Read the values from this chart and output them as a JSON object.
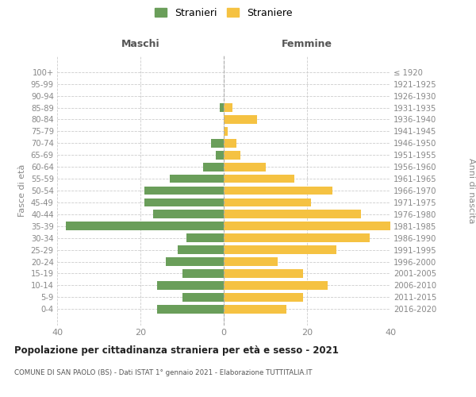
{
  "age_groups": [
    "100+",
    "95-99",
    "90-94",
    "85-89",
    "80-84",
    "75-79",
    "70-74",
    "65-69",
    "60-64",
    "55-59",
    "50-54",
    "45-49",
    "40-44",
    "35-39",
    "30-34",
    "25-29",
    "20-24",
    "15-19",
    "10-14",
    "5-9",
    "0-4"
  ],
  "birth_years": [
    "≤ 1920",
    "1921-1925",
    "1926-1930",
    "1931-1935",
    "1936-1940",
    "1941-1945",
    "1946-1950",
    "1951-1955",
    "1956-1960",
    "1961-1965",
    "1966-1970",
    "1971-1975",
    "1976-1980",
    "1981-1985",
    "1986-1990",
    "1991-1995",
    "1996-2000",
    "2001-2005",
    "2006-2010",
    "2011-2015",
    "2016-2020"
  ],
  "males": [
    0,
    0,
    0,
    1,
    0,
    0,
    3,
    2,
    5,
    13,
    19,
    19,
    17,
    38,
    9,
    11,
    14,
    10,
    16,
    10,
    16
  ],
  "females": [
    0,
    0,
    0,
    2,
    8,
    1,
    3,
    4,
    10,
    17,
    26,
    21,
    33,
    40,
    35,
    27,
    13,
    19,
    25,
    19,
    15
  ],
  "male_color": "#6a9e5a",
  "female_color": "#f5c242",
  "background_color": "#ffffff",
  "grid_color": "#cccccc",
  "title": "Popolazione per cittadinanza straniera per età e sesso - 2021",
  "subtitle": "COMUNE DI SAN PAOLO (BS) - Dati ISTAT 1° gennaio 2021 - Elaborazione TUTTITALIA.IT",
  "xlabel_left": "Maschi",
  "xlabel_right": "Femmine",
  "ylabel_left": "Fasce di età",
  "ylabel_right": "Anni di nascita",
  "legend_male": "Stranieri",
  "legend_female": "Straniere",
  "xlim": 40
}
